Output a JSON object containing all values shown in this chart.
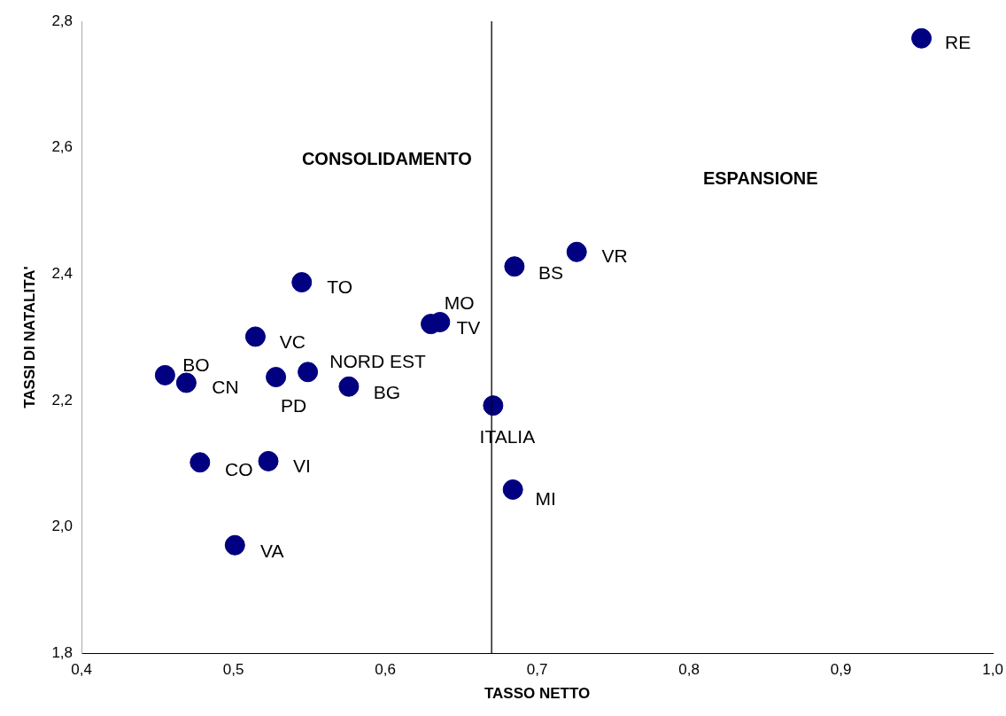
{
  "chart_data": {
    "type": "scatter",
    "xlabel": "TASSO NETTO",
    "ylabel": "TASSI DI NATALITA'",
    "x": [
      0.953,
      0.726,
      0.685,
      0.545,
      0.63,
      0.636,
      0.5145,
      0.549,
      0.455,
      0.469,
      0.576,
      0.528,
      0.671,
      0.478,
      0.523,
      0.684,
      0.501
    ],
    "series": [
      {
        "color": "#000080",
        "values": [
          2.773,
          2.435,
          2.412,
          2.387,
          2.321,
          2.324,
          2.301,
          2.245,
          2.24,
          2.228,
          2.222,
          2.237,
          2.192,
          2.102,
          2.104,
          2.059,
          1.971
        ]
      }
    ],
    "xlim": [
      0.4,
      1.0
    ],
    "xticks": [
      {
        "value": 0.4,
        "label": "0,4"
      },
      {
        "value": 0.5,
        "label": "0,5"
      },
      {
        "value": 0.6,
        "label": "0,6"
      },
      {
        "value": 0.7,
        "label": "0,7"
      },
      {
        "value": 0.8,
        "label": "0,8"
      },
      {
        "value": 0.9,
        "label": "0,9"
      },
      {
        "value": 1.0,
        "label": "1,0"
      }
    ],
    "ylim": [
      1.8,
      2.8
    ],
    "yticks": [
      {
        "value": 1.8,
        "label": "1,8"
      },
      {
        "value": 2.0,
        "label": "2,0"
      },
      {
        "value": 2.2,
        "label": "2,2"
      },
      {
        "value": 2.4,
        "label": "2,4"
      },
      {
        "value": 2.6,
        "label": "2,6"
      },
      {
        "value": 2.8,
        "label": "2,8"
      }
    ],
    "ref_lines": [
      {
        "axis": "x",
        "value": 0.67,
        "color": "#000000"
      }
    ],
    "grid": false,
    "legend": false,
    "marker": "circle",
    "annotations": [
      "CONSOLIDAMENTO",
      "ESPANSIONE",
      {
        "text": "RE",
        "x": 0.953,
        "y": 2.773
      },
      {
        "text": "VR",
        "x": 0.726,
        "y": 2.435
      },
      {
        "text": "BS",
        "x": 0.685,
        "y": 2.412
      },
      {
        "text": "TO",
        "x": 0.545,
        "y": 2.387
      },
      {
        "text": "MO",
        "x": 0.63,
        "y": 2.321
      },
      {
        "text": "TV",
        "x": 0.636,
        "y": 2.324
      },
      {
        "text": "VC",
        "x": 0.5145,
        "y": 2.301
      },
      {
        "text": "NORD EST",
        "x": 0.549,
        "y": 2.245
      },
      {
        "text": "BO",
        "x": 0.455,
        "y": 2.24
      },
      {
        "text": "CN",
        "x": 0.469,
        "y": 2.228
      },
      {
        "text": "BG",
        "x": 0.576,
        "y": 2.222
      },
      {
        "text": "PD",
        "x": 0.528,
        "y": 2.237
      },
      {
        "text": "ITALIA",
        "x": 0.671,
        "y": 2.192
      },
      {
        "text": "CO",
        "x": 0.478,
        "y": 2.102
      },
      {
        "text": "VI",
        "x": 0.523,
        "y": 2.104
      },
      {
        "text": "MI",
        "x": 0.684,
        "y": 2.059
      },
      {
        "text": "VA",
        "x": 0.501,
        "y": 1.971
      }
    ]
  }
}
